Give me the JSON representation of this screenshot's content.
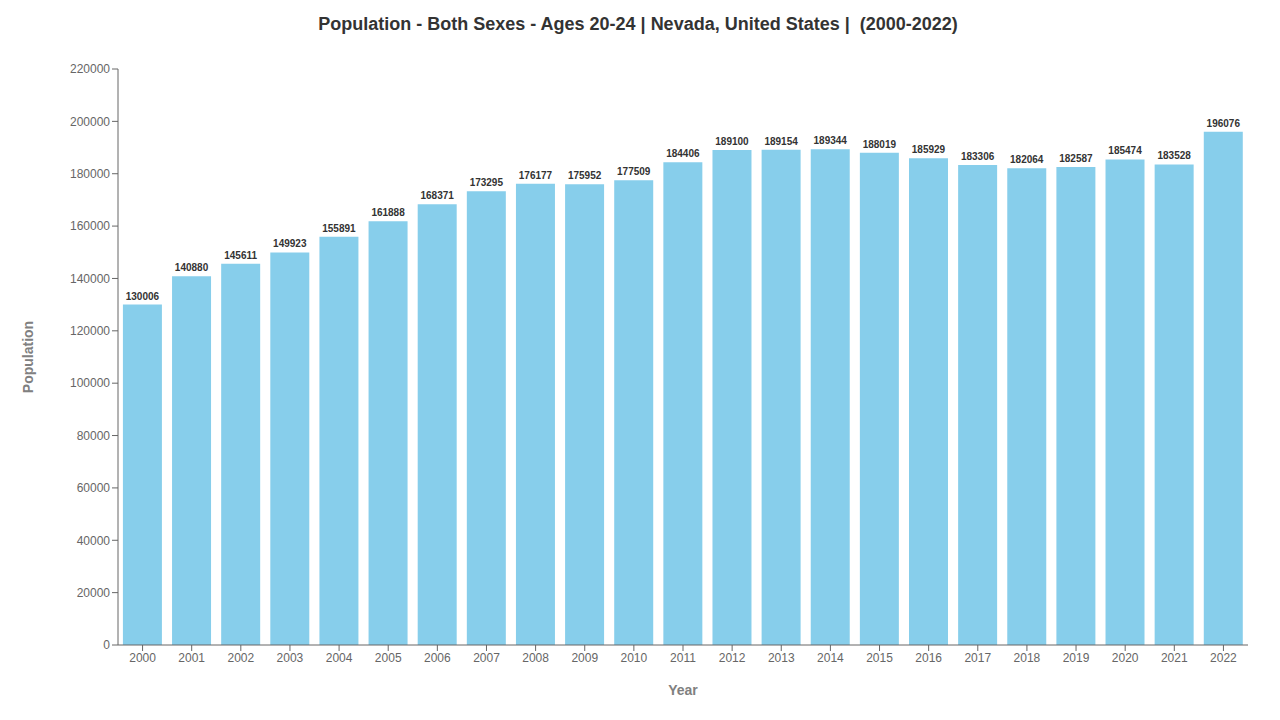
{
  "chart_data": {
    "type": "bar",
    "title": "Population - Both Sexes - Ages 20-24 | Nevada, United States |  (2000-2022)",
    "xlabel": "Year",
    "ylabel": "Population",
    "categories": [
      "2000",
      "2001",
      "2002",
      "2003",
      "2004",
      "2005",
      "2006",
      "2007",
      "2008",
      "2009",
      "2010",
      "2011",
      "2012",
      "2013",
      "2014",
      "2015",
      "2016",
      "2017",
      "2018",
      "2019",
      "2020",
      "2021",
      "2022"
    ],
    "values": [
      130006,
      140880,
      145611,
      149923,
      155891,
      161888,
      168371,
      173295,
      176177,
      175952,
      177509,
      184406,
      189100,
      189154,
      189344,
      188019,
      185929,
      183306,
      182064,
      182587,
      185474,
      183528,
      196076
    ],
    "color": "#87CEEB",
    "ylim": [
      0,
      220000
    ],
    "yticks": [
      0,
      20000,
      40000,
      60000,
      80000,
      100000,
      120000,
      140000,
      160000,
      180000,
      200000,
      220000
    ],
    "grid": false,
    "data_labels": true
  }
}
